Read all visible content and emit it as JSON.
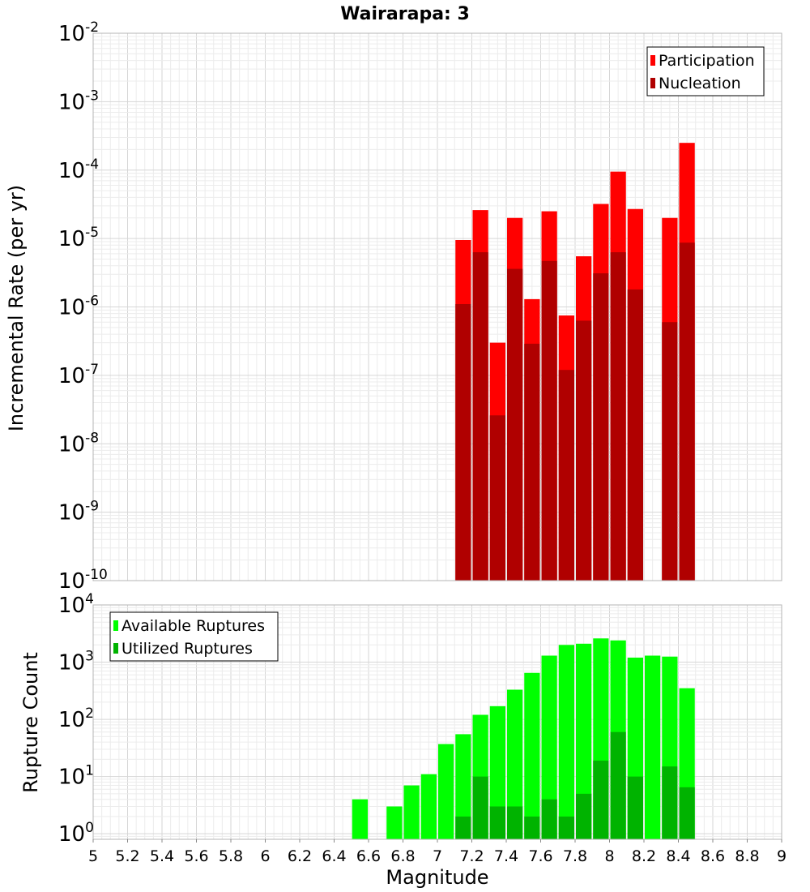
{
  "title": "Wairarapa: 3",
  "chart_data": [
    {
      "type": "bar",
      "title": "Wairarapa: 3",
      "ylabel": "Incremental Rate (per yr)",
      "xlabel": "",
      "yscale": "log",
      "ylim": [
        1e-10,
        0.01
      ],
      "xlim": [
        5,
        9
      ],
      "bar_width": 0.1,
      "grid": true,
      "legend_position": "top-right",
      "y_ticks": [
        {
          "base": "10",
          "exp": "-10",
          "value": 1e-10
        },
        {
          "base": "10",
          "exp": "-9",
          "value": 1e-09
        },
        {
          "base": "10",
          "exp": "-8",
          "value": 1e-08
        },
        {
          "base": "10",
          "exp": "-7",
          "value": 1e-07
        },
        {
          "base": "10",
          "exp": "-6",
          "value": 1e-06
        },
        {
          "base": "10",
          "exp": "-5",
          "value": 1e-05
        },
        {
          "base": "10",
          "exp": "-4",
          "value": 0.0001
        },
        {
          "base": "10",
          "exp": "-3",
          "value": 0.001
        },
        {
          "base": "10",
          "exp": "-2",
          "value": 0.01
        }
      ],
      "series": [
        {
          "name": "Participation",
          "color": "#ff0000",
          "x": [
            7.15,
            7.25,
            7.35,
            7.45,
            7.55,
            7.65,
            7.75,
            7.85,
            7.95,
            8.05,
            8.15,
            8.35,
            8.45
          ],
          "values": [
            9.5e-06,
            2.6e-05,
            3e-07,
            2e-05,
            1.3e-06,
            2.5e-05,
            7.5e-07,
            5.5e-06,
            3.2e-05,
            9.5e-05,
            2.7e-05,
            2e-05,
            0.00025
          ]
        },
        {
          "name": "Nucleation",
          "color": "#b00000",
          "x": [
            7.15,
            7.25,
            7.35,
            7.45,
            7.55,
            7.65,
            7.75,
            7.85,
            7.95,
            8.05,
            8.15,
            8.35,
            8.45
          ],
          "values": [
            1.1e-06,
            6.3e-06,
            2.6e-08,
            3.6e-06,
            2.9e-07,
            4.7e-06,
            1.2e-07,
            6.3e-07,
            3.1e-06,
            6.3e-06,
            1.8e-06,
            6e-07,
            8.7e-06
          ]
        }
      ]
    },
    {
      "type": "bar",
      "title": "",
      "ylabel": "Rupture Count",
      "xlabel": "Magnitude",
      "yscale": "log",
      "ylim": [
        0.8,
        10000
      ],
      "xlim": [
        5,
        9
      ],
      "bar_width": 0.1,
      "grid": true,
      "legend_position": "top-left",
      "y_ticks": [
        {
          "base": "10",
          "exp": "0",
          "value": 1
        },
        {
          "base": "10",
          "exp": "1",
          "value": 10
        },
        {
          "base": "10",
          "exp": "2",
          "value": 100
        },
        {
          "base": "10",
          "exp": "3",
          "value": 1000
        },
        {
          "base": "10",
          "exp": "4",
          "value": 10000
        }
      ],
      "x_tick_labels": [
        "5",
        "5.2",
        "5.4",
        "5.6",
        "5.8",
        "6",
        "6.2",
        "6.4",
        "6.6",
        "6.8",
        "7",
        "7.2",
        "7.4",
        "7.6",
        "7.8",
        "8",
        "8.2",
        "8.4",
        "8.6",
        "8.8",
        "9"
      ],
      "series": [
        {
          "name": "Available Ruptures",
          "color": "#00ff00",
          "x": [
            6.55,
            6.75,
            6.85,
            6.95,
            7.05,
            7.15,
            7.25,
            7.35,
            7.45,
            7.55,
            7.65,
            7.75,
            7.85,
            7.95,
            8.05,
            8.15,
            8.25,
            8.35,
            8.45
          ],
          "values": [
            4,
            3,
            7,
            11,
            37,
            55,
            120,
            170,
            330,
            650,
            1300,
            2000,
            2100,
            2600,
            2400,
            1200,
            1300,
            1250,
            350
          ]
        },
        {
          "name": "Utilized Ruptures",
          "color": "#00b300",
          "x": [
            7.15,
            7.25,
            7.35,
            7.45,
            7.55,
            7.65,
            7.75,
            7.85,
            7.95,
            8.05,
            8.15,
            8.35,
            8.45
          ],
          "values": [
            2,
            10,
            3,
            3,
            2,
            4,
            2,
            5,
            19,
            60,
            10,
            15,
            6.5
          ]
        }
      ]
    }
  ]
}
